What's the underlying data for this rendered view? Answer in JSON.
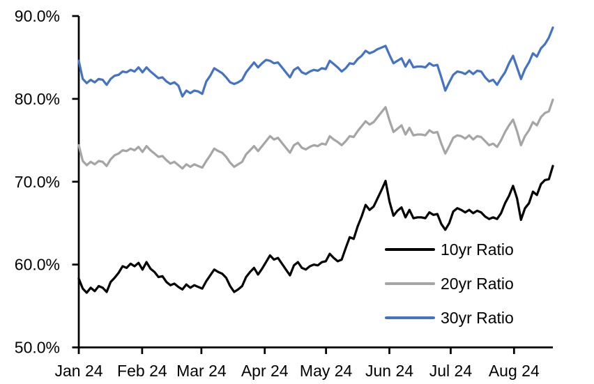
{
  "page": {
    "background": "#ffffff"
  },
  "chart_data": {
    "type": "line",
    "title": "",
    "grid": false,
    "plot_background": "#ffffff",
    "axis_color": "#000000",
    "y_axis": {
      "min": 50,
      "max": 90,
      "format": "percent",
      "tick_values": [
        90,
        80,
        70,
        60,
        50
      ],
      "tick_labels": [
        "90.0%",
        "80.0%",
        "70.0%",
        "60.0%",
        "50.0%"
      ]
    },
    "x_axis": {
      "start": "2024-01-01",
      "end": "2024-08-20",
      "total_days": 232,
      "ticks": [
        {
          "label": "Jan 24",
          "day": 0
        },
        {
          "label": "Feb 24",
          "day": 31
        },
        {
          "label": "Mar 24",
          "day": 60
        },
        {
          "label": "Apr 24",
          "day": 91
        },
        {
          "label": "May 24",
          "day": 121
        },
        {
          "label": "Jun 24",
          "day": 152
        },
        {
          "label": "Jul 24",
          "day": 182
        },
        {
          "label": "Aug 24",
          "day": 213
        }
      ]
    },
    "legend": {
      "position": "inside-lower-right"
    },
    "sampling": "each series: 120 points uniformly spaced 2024-01-01 to 2024-08-20 (~2-day steps), values in %",
    "series": [
      {
        "name": "10yr Ratio",
        "color": "#000000",
        "values": [
          58.3,
          57.1,
          56.6,
          57.2,
          56.8,
          57.4,
          57.2,
          56.7,
          57.9,
          58.4,
          59.0,
          59.8,
          59.6,
          60.1,
          59.8,
          60.2,
          59.4,
          60.3,
          59.5,
          59.1,
          58.5,
          58.6,
          57.9,
          57.5,
          57.7,
          57.3,
          57.0,
          57.6,
          57.2,
          57.5,
          57.3,
          57.1,
          58.0,
          58.7,
          59.4,
          59.1,
          58.9,
          58.4,
          57.4,
          56.7,
          57.0,
          57.4,
          58.5,
          59.1,
          59.6,
          58.8,
          59.5,
          60.3,
          61.1,
          60.6,
          60.8,
          60.1,
          59.4,
          58.7,
          59.9,
          60.3,
          59.6,
          59.4,
          59.8,
          60.0,
          59.9,
          60.3,
          60.4,
          61.3,
          60.8,
          60.4,
          60.6,
          62.0,
          63.3,
          63.1,
          64.6,
          65.8,
          67.2,
          66.6,
          67.0,
          68.0,
          69.0,
          70.1,
          67.6,
          65.9,
          66.5,
          66.9,
          65.7,
          66.6,
          65.6,
          65.7,
          65.7,
          65.6,
          66.3,
          66.0,
          66.1,
          64.9,
          64.2,
          65.0,
          66.4,
          66.8,
          66.6,
          66.3,
          66.6,
          66.2,
          66.5,
          66.3,
          65.8,
          65.5,
          65.7,
          65.5,
          66.2,
          67.4,
          68.3,
          69.5,
          68.0,
          65.4,
          66.8,
          67.4,
          68.8,
          68.4,
          69.7,
          70.2,
          70.3,
          71.9
        ]
      },
      {
        "name": "20yr Ratio",
        "color": "#A5A5A5",
        "values": [
          74.4,
          72.5,
          72.0,
          72.4,
          72.1,
          72.5,
          72.4,
          71.9,
          72.7,
          73.2,
          73.4,
          73.8,
          73.7,
          74.0,
          73.8,
          74.2,
          73.6,
          74.3,
          73.8,
          73.4,
          73.0,
          73.1,
          72.6,
          72.2,
          72.4,
          72.0,
          71.6,
          72.1,
          71.8,
          72.1,
          71.9,
          71.7,
          72.5,
          73.2,
          74.0,
          73.7,
          73.5,
          73.0,
          72.3,
          71.8,
          72.1,
          72.4,
          73.3,
          73.8,
          74.3,
          73.7,
          74.3,
          74.9,
          75.5,
          75.1,
          75.3,
          74.7,
          74.1,
          73.5,
          74.4,
          74.7,
          74.1,
          73.9,
          74.2,
          74.4,
          74.3,
          74.6,
          74.5,
          75.5,
          75.1,
          74.8,
          74.4,
          74.9,
          75.5,
          75.4,
          76.1,
          76.7,
          77.3,
          76.9,
          77.2,
          77.8,
          78.4,
          79.0,
          77.4,
          76.0,
          76.4,
          76.8,
          75.7,
          76.5,
          75.6,
          75.7,
          75.7,
          75.6,
          76.2,
          75.9,
          76.0,
          74.6,
          73.4,
          74.3,
          75.3,
          75.6,
          75.5,
          75.2,
          75.6,
          75.1,
          75.5,
          75.4,
          74.9,
          74.4,
          74.6,
          74.2,
          75.0,
          76.0,
          76.8,
          77.5,
          76.1,
          74.4,
          75.5,
          76.2,
          77.2,
          76.8,
          77.8,
          78.3,
          78.5,
          79.9
        ]
      },
      {
        "name": "30yr Ratio",
        "color": "#4472C4",
        "values": [
          84.6,
          82.4,
          81.9,
          82.3,
          82.0,
          82.4,
          82.3,
          81.7,
          82.4,
          82.8,
          82.9,
          83.3,
          83.2,
          83.5,
          83.3,
          83.8,
          83.2,
          83.8,
          83.3,
          82.9,
          82.5,
          82.6,
          82.1,
          81.8,
          82.0,
          81.6,
          80.3,
          81.0,
          80.7,
          81.0,
          80.9,
          80.6,
          82.1,
          82.8,
          83.7,
          83.4,
          83.1,
          82.6,
          82.0,
          81.8,
          82.0,
          82.3,
          83.2,
          83.8,
          84.4,
          83.8,
          84.3,
          84.7,
          84.6,
          84.3,
          84.4,
          83.8,
          83.2,
          82.6,
          83.5,
          83.8,
          83.2,
          83.0,
          83.3,
          83.5,
          83.4,
          83.7,
          83.6,
          84.6,
          84.2,
          83.8,
          83.3,
          83.7,
          84.3,
          84.2,
          84.8,
          85.2,
          85.8,
          85.5,
          85.7,
          86.0,
          86.2,
          86.4,
          85.3,
          84.3,
          84.6,
          84.9,
          83.9,
          84.7,
          83.8,
          83.9,
          83.9,
          83.8,
          84.3,
          84.0,
          84.1,
          82.6,
          81.0,
          82.0,
          82.9,
          83.3,
          83.2,
          83.0,
          83.4,
          83.0,
          83.4,
          83.3,
          82.6,
          82.1,
          82.3,
          81.7,
          82.5,
          83.2,
          84.3,
          85.2,
          83.8,
          82.4,
          83.6,
          84.4,
          85.5,
          85.1,
          86.1,
          86.6,
          87.4,
          88.6
        ]
      }
    ]
  }
}
